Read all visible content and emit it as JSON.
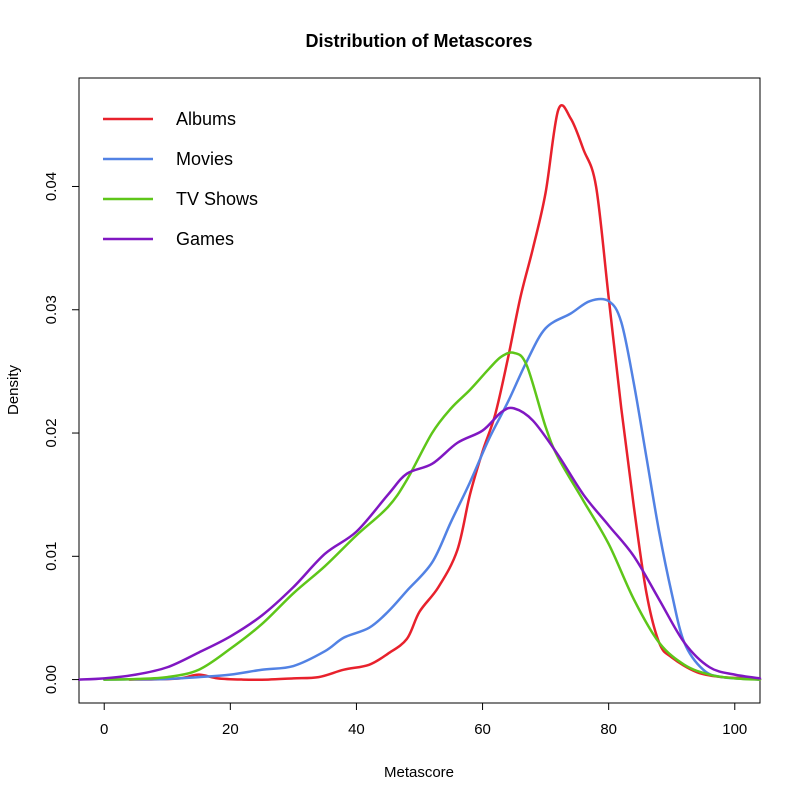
{
  "chart_data": {
    "type": "line",
    "title": "Distribution of Metascores",
    "xlabel": "Metascore",
    "ylabel": "Density",
    "xlim": [
      -4,
      104
    ],
    "ylim": [
      -0.0019,
      0.0488
    ],
    "xticks": [
      0,
      20,
      40,
      60,
      80,
      100
    ],
    "yticks": [
      0.0,
      0.01,
      0.02,
      0.03,
      0.04
    ],
    "ytick_labels": [
      "0.00",
      "0.01",
      "0.02",
      "0.03",
      "0.04"
    ],
    "grid": false,
    "legend_position": "top-left",
    "series": [
      {
        "name": "Albums",
        "color": "#e8212c",
        "points": [
          [
            4,
            0
          ],
          [
            8,
            2e-05
          ],
          [
            12,
            0.0001
          ],
          [
            15,
            0.0004
          ],
          [
            18,
            0.0001
          ],
          [
            22,
            0
          ],
          [
            26,
            0
          ],
          [
            30,
            0.0001
          ],
          [
            34,
            0.0002
          ],
          [
            38,
            0.0008
          ],
          [
            42,
            0.0012
          ],
          [
            45,
            0.0021
          ],
          [
            48,
            0.0033
          ],
          [
            50,
            0.0055
          ],
          [
            53,
            0.0075
          ],
          [
            56,
            0.0105
          ],
          [
            58,
            0.015
          ],
          [
            60,
            0.0185
          ],
          [
            62,
            0.0215
          ],
          [
            64,
            0.026
          ],
          [
            66,
            0.031
          ],
          [
            68,
            0.035
          ],
          [
            70,
            0.0395
          ],
          [
            72,
            0.0462
          ],
          [
            74,
            0.0455
          ],
          [
            76,
            0.043
          ],
          [
            78,
            0.04
          ],
          [
            80,
            0.031
          ],
          [
            82,
            0.022
          ],
          [
            84,
            0.014
          ],
          [
            86,
            0.007
          ],
          [
            88,
            0.003
          ],
          [
            90,
            0.0018
          ],
          [
            94,
            0.0006
          ],
          [
            98,
            0.0002
          ],
          [
            102,
            0.0001
          ],
          [
            104,
            0
          ]
        ]
      },
      {
        "name": "Movies",
        "color": "#5282e4",
        "points": [
          [
            0,
            0
          ],
          [
            10,
            5e-05
          ],
          [
            15,
            0.0002
          ],
          [
            20,
            0.0004
          ],
          [
            25,
            0.0008
          ],
          [
            30,
            0.0011
          ],
          [
            35,
            0.0023
          ],
          [
            38,
            0.0034
          ],
          [
            42,
            0.0042
          ],
          [
            45,
            0.0055
          ],
          [
            48,
            0.0072
          ],
          [
            52,
            0.0095
          ],
          [
            55,
            0.0128
          ],
          [
            58,
            0.016
          ],
          [
            61,
            0.0195
          ],
          [
            64,
            0.0225
          ],
          [
            67,
            0.0258
          ],
          [
            70,
            0.0285
          ],
          [
            74,
            0.0297
          ],
          [
            77,
            0.0307
          ],
          [
            80,
            0.0307
          ],
          [
            82,
            0.029
          ],
          [
            84,
            0.024
          ],
          [
            86,
            0.018
          ],
          [
            88,
            0.012
          ],
          [
            90,
            0.007
          ],
          [
            92,
            0.003
          ],
          [
            95,
            0.0008
          ],
          [
            98,
            0.0002
          ],
          [
            104,
            0
          ]
        ]
      },
      {
        "name": "TV Shows",
        "color": "#5ec619",
        "points": [
          [
            0,
            0
          ],
          [
            5,
            5e-05
          ],
          [
            10,
            0.0002
          ],
          [
            15,
            0.0008
          ],
          [
            20,
            0.0025
          ],
          [
            25,
            0.0045
          ],
          [
            30,
            0.007
          ],
          [
            35,
            0.0092
          ],
          [
            40,
            0.0117
          ],
          [
            45,
            0.014
          ],
          [
            48,
            0.0162
          ],
          [
            52,
            0.02
          ],
          [
            55,
            0.022
          ],
          [
            58,
            0.0235
          ],
          [
            61,
            0.0252
          ],
          [
            63,
            0.0262
          ],
          [
            65,
            0.0265
          ],
          [
            67,
            0.0255
          ],
          [
            70,
            0.0205
          ],
          [
            72,
            0.018
          ],
          [
            76,
            0.0145
          ],
          [
            80,
            0.011
          ],
          [
            84,
            0.0065
          ],
          [
            88,
            0.003
          ],
          [
            92,
            0.0012
          ],
          [
            96,
            0.0004
          ],
          [
            100,
            0.0001
          ],
          [
            104,
            0
          ]
        ]
      },
      {
        "name": "Games",
        "color": "#8017c2",
        "points": [
          [
            -4,
            0
          ],
          [
            0,
            0.0001
          ],
          [
            5,
            0.0004
          ],
          [
            10,
            0.001
          ],
          [
            15,
            0.0022
          ],
          [
            20,
            0.0035
          ],
          [
            25,
            0.0052
          ],
          [
            30,
            0.0075
          ],
          [
            35,
            0.0102
          ],
          [
            40,
            0.012
          ],
          [
            45,
            0.015
          ],
          [
            48,
            0.0167
          ],
          [
            52,
            0.0175
          ],
          [
            56,
            0.0192
          ],
          [
            60,
            0.0202
          ],
          [
            63,
            0.0217
          ],
          [
            65,
            0.022
          ],
          [
            68,
            0.021
          ],
          [
            72,
            0.0182
          ],
          [
            76,
            0.015
          ],
          [
            80,
            0.0125
          ],
          [
            84,
            0.01
          ],
          [
            88,
            0.0065
          ],
          [
            92,
            0.003
          ],
          [
            96,
            0.001
          ],
          [
            100,
            0.0004
          ],
          [
            104,
            0.0001
          ]
        ]
      }
    ]
  }
}
